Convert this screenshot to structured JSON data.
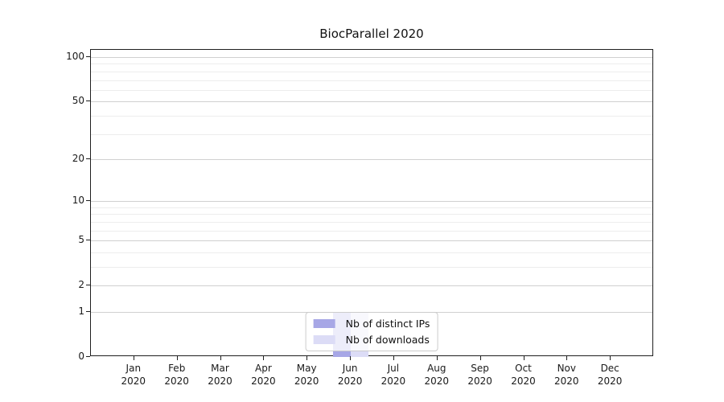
{
  "chart_data": {
    "type": "bar",
    "title": "BiocParallel 2020",
    "xlabel": "",
    "ylabel": "",
    "categories": [
      "Jan 2020",
      "Feb 2020",
      "Mar 2020",
      "Apr 2020",
      "May 2020",
      "Jun 2020",
      "Jul 2020",
      "Aug 2020",
      "Sep 2020",
      "Oct 2020",
      "Nov 2020",
      "Dec 2020"
    ],
    "series": [
      {
        "name": "Nb of distinct IPs",
        "color": "#a7a7e6",
        "values": [
          0,
          0,
          0,
          0,
          0,
          1,
          0,
          0,
          0,
          0,
          0,
          0
        ]
      },
      {
        "name": "Nb of downloads",
        "color": "#dcdcf6",
        "values": [
          0,
          0,
          0,
          0,
          0,
          1,
          0,
          0,
          0,
          0,
          0,
          0
        ]
      }
    ],
    "y_scale": "log10(1+x)",
    "y_ticks": [
      0,
      1,
      2,
      5,
      10,
      20,
      50,
      100
    ],
    "y_minor_gridlines": [
      3,
      4,
      6,
      7,
      8,
      9,
      30,
      40,
      60,
      70,
      80,
      90
    ],
    "ylim": [
      0,
      112
    ],
    "grid": true,
    "legend_position": "lower center",
    "colors": {
      "grid_major": "#d0d0d0",
      "grid_minor": "#ededed",
      "axis": "#1f1f1f",
      "text": "#1a1a1a",
      "background": "#ffffff"
    }
  }
}
